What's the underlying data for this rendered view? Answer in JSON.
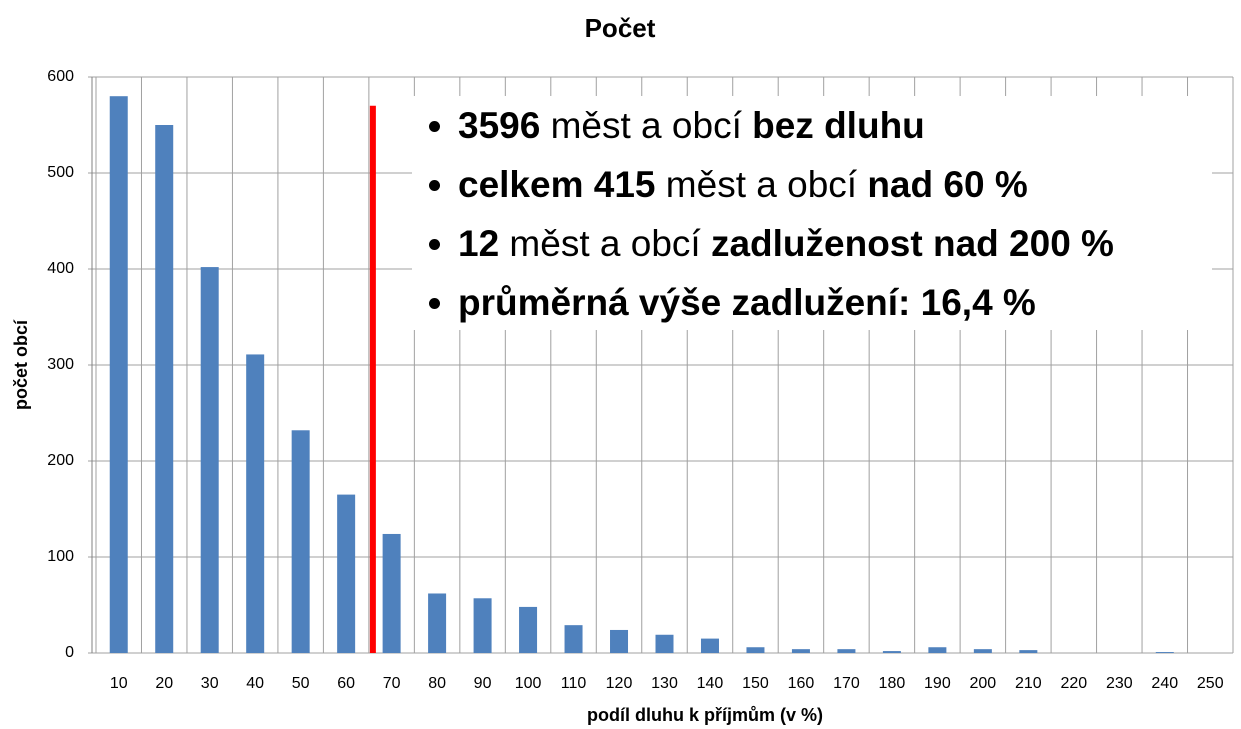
{
  "chart_data": {
    "type": "bar",
    "title": "Počet",
    "x_label": "podíl dluhu k příjmům (v %)",
    "y_label": "počet obcí",
    "categories": [
      "10",
      "20",
      "30",
      "40",
      "50",
      "60",
      "70",
      "80",
      "90",
      "100",
      "110",
      "120",
      "130",
      "140",
      "150",
      "160",
      "170",
      "180",
      "190",
      "200",
      "210",
      "220",
      "230",
      "240",
      "250"
    ],
    "values": [
      580,
      550,
      402,
      311,
      232,
      165,
      124,
      62,
      57,
      48,
      29,
      24,
      19,
      15,
      6,
      4,
      4,
      2,
      6,
      4,
      3,
      0,
      0,
      1,
      0
    ],
    "color": "#4f81bd",
    "ylim": [
      0,
      600
    ],
    "yticks": [
      0,
      100,
      200,
      300,
      400,
      500,
      600
    ],
    "grid": true,
    "reference_line": {
      "after_category": 5,
      "value": 570,
      "color": "#ff0000"
    },
    "annotations": [
      [
        {
          "text": "3596",
          "bold": true
        },
        {
          "text": " měst a obcí ",
          "bold": false
        },
        {
          "text": "bez dluhu",
          "bold": true
        }
      ],
      [
        {
          "text": "celkem 415",
          "bold": true
        },
        {
          "text": " měst a obcí ",
          "bold": false
        },
        {
          "text": "nad 60 %",
          "bold": true
        }
      ],
      [
        {
          "text": "12",
          "bold": true
        },
        {
          "text": " měst a obcí ",
          "bold": false
        },
        {
          "text": "zadluženost nad 200 %",
          "bold": true
        }
      ],
      [
        {
          "text": "průměrná výše zadlužení: 16,4 %",
          "bold": true
        }
      ]
    ]
  }
}
